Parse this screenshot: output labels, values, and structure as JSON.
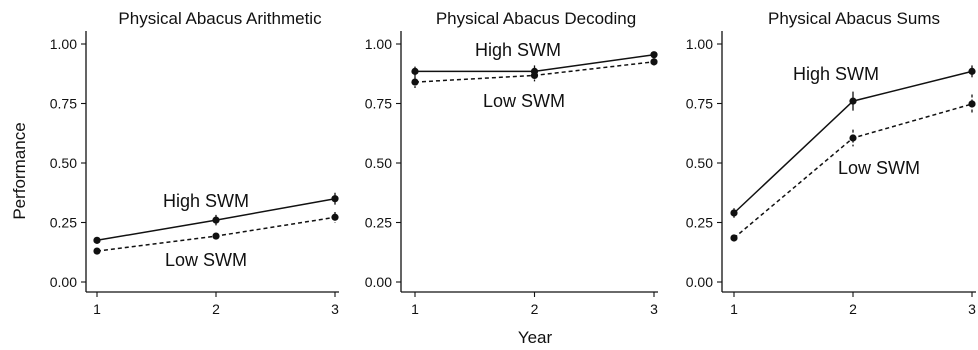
{
  "figure": {
    "ylabel": "Performance",
    "xlabel": "Year"
  },
  "chart_data": [
    {
      "type": "line",
      "title": "Physical Abacus Arithmetic",
      "x": [
        1,
        2,
        3
      ],
      "xticks": [
        "1",
        "2",
        "3"
      ],
      "yticks": [
        "0.00",
        "0.25",
        "0.50",
        "0.75",
        "1.00"
      ],
      "ylim": [
        0,
        1
      ],
      "grid": false,
      "series": [
        {
          "name": "High SWM",
          "style": "solid",
          "values": [
            0.175,
            0.26,
            0.35
          ],
          "errors": [
            0.008,
            0.022,
            0.025
          ]
        },
        {
          "name": "Low SWM",
          "style": "dashed",
          "values": [
            0.13,
            0.193,
            0.272
          ],
          "errors": [
            0.008,
            0.01,
            0.022
          ]
        }
      ]
    },
    {
      "type": "line",
      "title": "Physical Abacus Decoding",
      "x": [
        1,
        2,
        3
      ],
      "xticks": [
        "1",
        "2",
        "3"
      ],
      "yticks": [
        "0.00",
        "0.25",
        "0.50",
        "0.75",
        "1.00"
      ],
      "ylim": [
        0,
        1
      ],
      "grid": false,
      "series": [
        {
          "name": "High SWM",
          "style": "solid",
          "values": [
            0.885,
            0.885,
            0.955
          ],
          "errors": [
            0.02,
            0.025,
            0.012
          ]
        },
        {
          "name": "Low SWM",
          "style": "dashed",
          "values": [
            0.84,
            0.868,
            0.925
          ],
          "errors": [
            0.025,
            0.025,
            0.015
          ]
        }
      ]
    },
    {
      "type": "line",
      "title": "Physical Abacus Sums",
      "x": [
        1,
        2,
        3
      ],
      "xticks": [
        "1",
        "2",
        "3"
      ],
      "yticks": [
        "0.00",
        "0.25",
        "0.50",
        "0.75",
        "1.00"
      ],
      "ylim": [
        0,
        1
      ],
      "grid": false,
      "series": [
        {
          "name": "High SWM",
          "style": "solid",
          "values": [
            0.29,
            0.76,
            0.885
          ],
          "errors": [
            0.02,
            0.04,
            0.025
          ]
        },
        {
          "name": "Low SWM",
          "style": "dashed",
          "values": [
            0.185,
            0.605,
            0.748
          ],
          "errors": [
            0.012,
            0.035,
            0.04
          ]
        }
      ]
    }
  ]
}
